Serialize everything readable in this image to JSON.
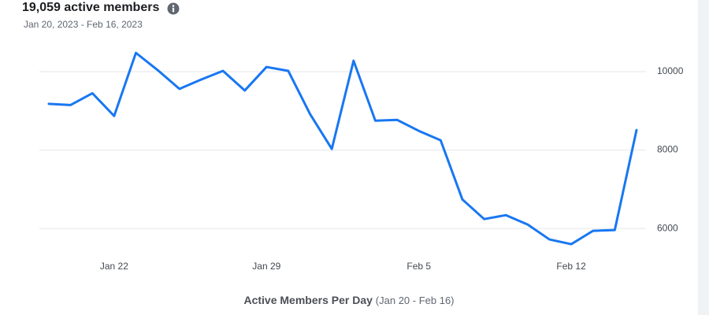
{
  "header": {
    "title": "19,059 active members",
    "subtitle": "Jan 20, 2023 - Feb 16, 2023"
  },
  "chart_data": {
    "type": "line",
    "categories": [
      null,
      null,
      null,
      "Jan 22",
      null,
      null,
      null,
      null,
      null,
      null,
      "Jan 29",
      null,
      null,
      null,
      null,
      null,
      null,
      "Feb 5",
      null,
      null,
      null,
      null,
      null,
      null,
      "Feb 12",
      null,
      null,
      null
    ],
    "series": [
      {
        "name": "Active Members Per Day",
        "color": "#1877f2",
        "values": [
          9180,
          9150,
          9450,
          8870,
          10480,
          10040,
          9560,
          9800,
          10020,
          9520,
          10120,
          10020,
          8920,
          8030,
          10280,
          8750,
          8770,
          8490,
          8250,
          6740,
          6240,
          6340,
          6100,
          5720,
          5600,
          5940,
          5960,
          8510
        ]
      }
    ],
    "ylim": [
      5400,
      10800
    ],
    "yticks": [
      6000,
      8000,
      10000
    ],
    "grid": true,
    "y_axis_side": "right",
    "xlabel": "Active Members Per Day",
    "xlabel_note": "(Jan 20 - Feb 16)"
  }
}
